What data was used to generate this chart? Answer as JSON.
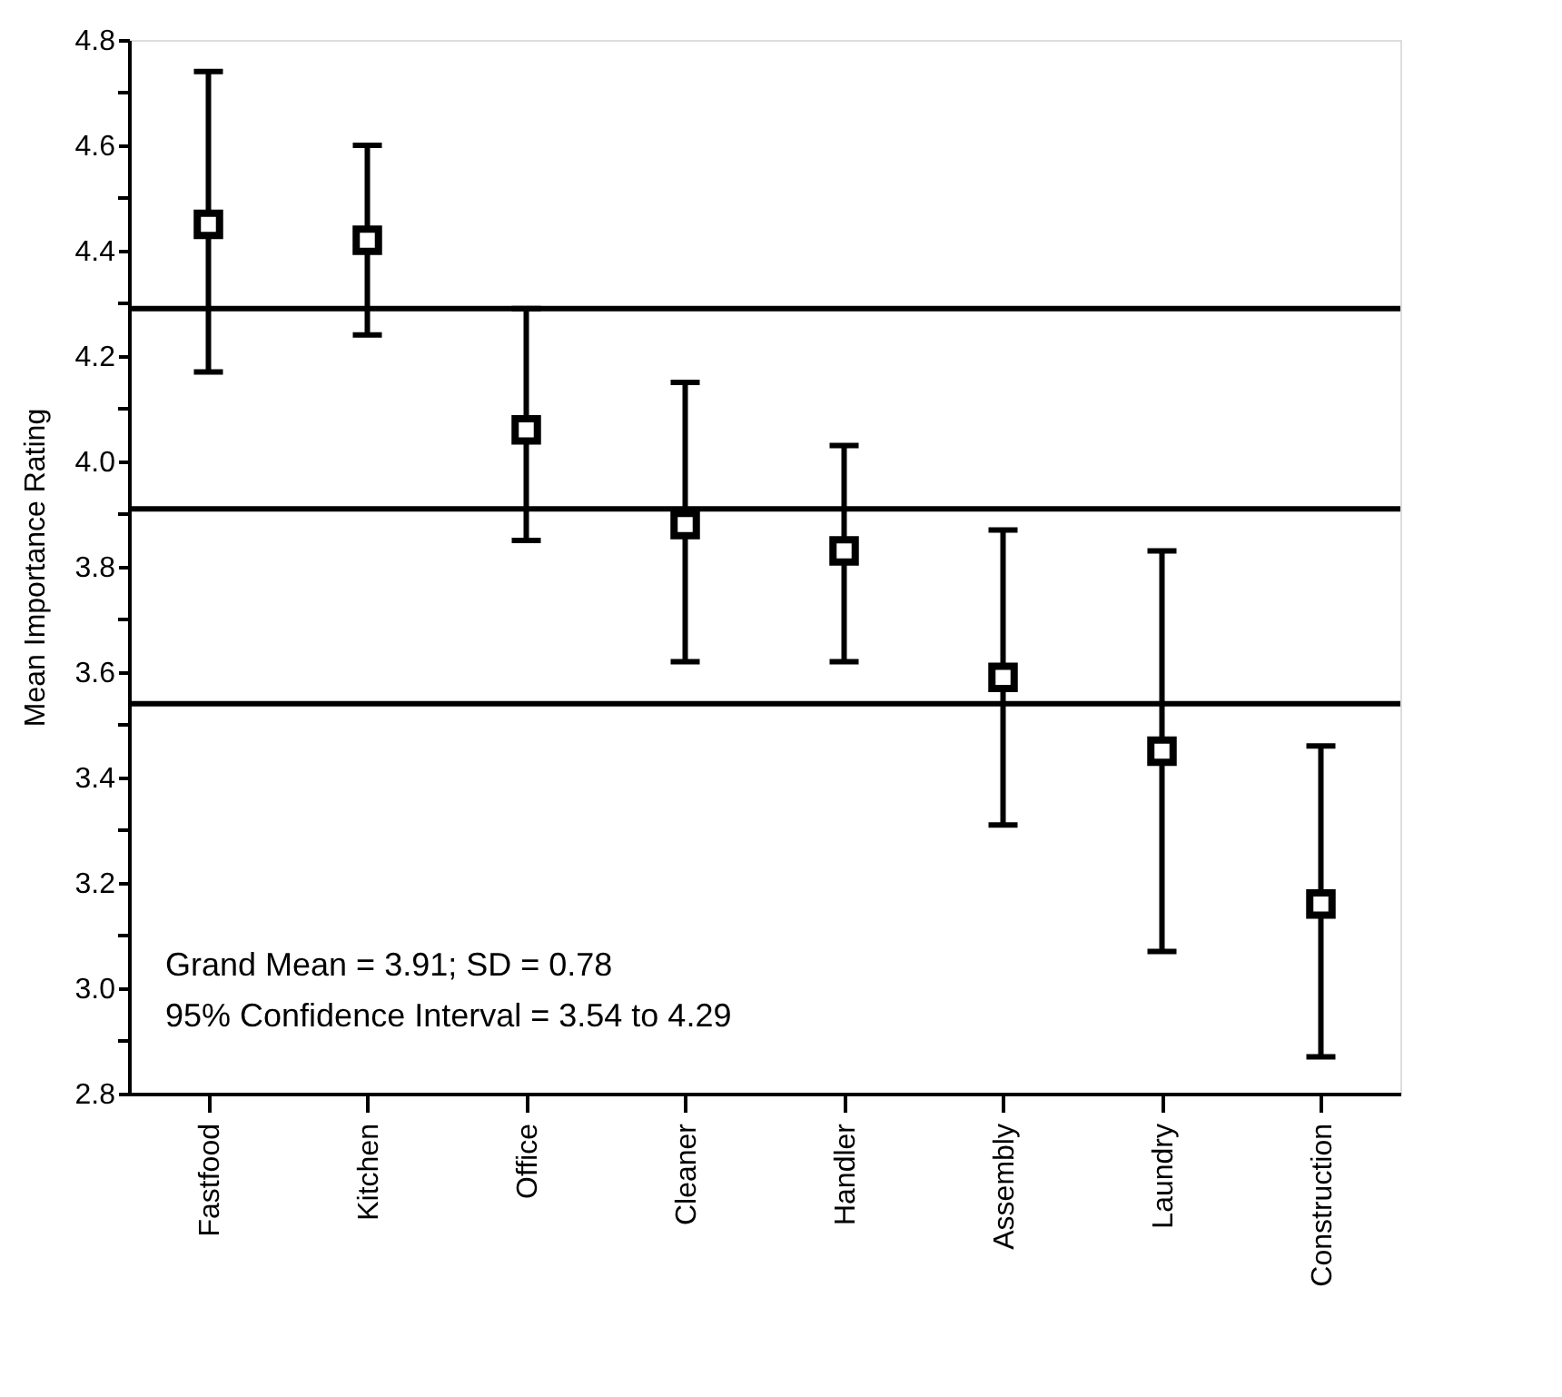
{
  "chart_data": {
    "type": "scatter",
    "ylabel": "Mean Importance Rating",
    "categories": [
      "Fastfood",
      "Kitchen",
      "Office",
      "Cleaner",
      "Handler",
      "Assembly",
      "Laundry",
      "Construction"
    ],
    "series": [
      {
        "color": "#000000",
        "values": [
          4.45,
          4.42,
          4.06,
          3.88,
          3.83,
          3.59,
          3.45,
          3.16
        ],
        "errors": [
          [
            4.17,
            4.74
          ],
          [
            4.24,
            4.6
          ],
          [
            3.85,
            4.29
          ],
          [
            3.62,
            4.15
          ],
          [
            3.62,
            4.03
          ],
          [
            3.31,
            3.87
          ],
          [
            3.07,
            3.83
          ],
          [
            2.87,
            3.46
          ]
        ]
      }
    ],
    "marker": "square",
    "ylim": [
      2.8,
      4.8
    ],
    "yticks": [
      {
        "value": 2.8,
        "label": "2.8"
      },
      {
        "value": 2.9,
        "label": null
      },
      {
        "value": 3.0,
        "label": "3.0"
      },
      {
        "value": 3.1,
        "label": null
      },
      {
        "value": 3.2,
        "label": "3.2"
      },
      {
        "value": 3.3,
        "label": null
      },
      {
        "value": 3.4,
        "label": "3.4"
      },
      {
        "value": 3.5,
        "label": null
      },
      {
        "value": 3.6,
        "label": "3.6"
      },
      {
        "value": 3.7,
        "label": null
      },
      {
        "value": 3.8,
        "label": "3.8"
      },
      {
        "value": 3.9,
        "label": null
      },
      {
        "value": 4.0,
        "label": "4.0"
      },
      {
        "value": 4.1,
        "label": null
      },
      {
        "value": 4.2,
        "label": "4.2"
      },
      {
        "value": 4.3,
        "label": null
      },
      {
        "value": 4.4,
        "label": "4.4"
      },
      {
        "value": 4.5,
        "label": null
      },
      {
        "value": 4.6,
        "label": "4.6"
      },
      {
        "value": 4.7,
        "label": null
      },
      {
        "value": 4.8,
        "label": "4.8"
      }
    ],
    "ref_lines": [
      {
        "axis": "y",
        "value": 4.29,
        "color": "#000000"
      },
      {
        "axis": "y",
        "value": 3.91,
        "color": "#000000"
      },
      {
        "axis": "y",
        "value": 3.54,
        "color": "#000000"
      }
    ],
    "annotations": [
      "Grand Mean = 3.91; SD = 0.78",
      "95% Confidence Interval = 3.54 to 4.29"
    ],
    "grid": false
  }
}
